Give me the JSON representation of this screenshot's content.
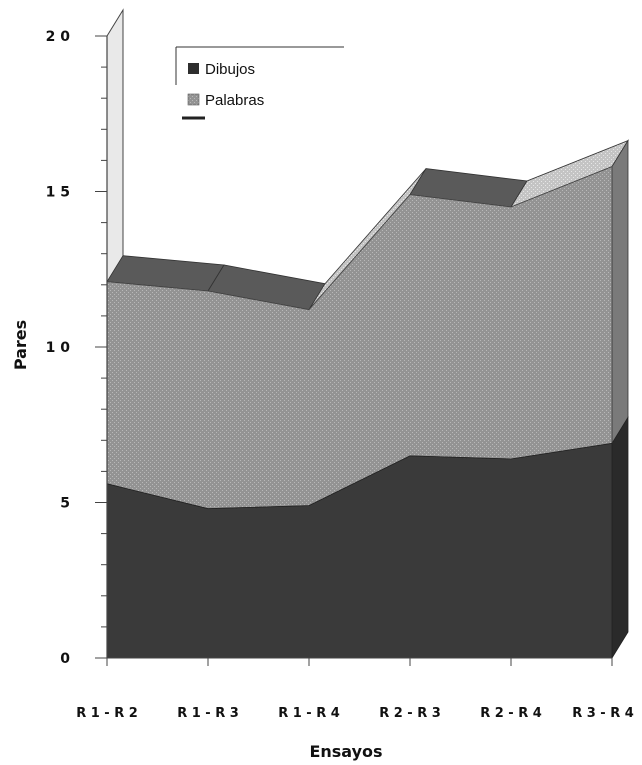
{
  "chart_data": {
    "type": "area",
    "categories": [
      "R1-R2",
      "R1-R3",
      "R1-R4",
      "R2-R3",
      "R2-R4",
      "R3-R4"
    ],
    "category_labels": [
      "R 1 - R 2",
      "R 1 - R 3",
      "R 1 - R 4",
      "R 2 - R 3",
      "R 2 - R 4",
      "R 3 - R 4"
    ],
    "series": [
      {
        "name": "Dibujos",
        "values": [
          5.6,
          4.8,
          4.9,
          6.5,
          6.4,
          6.9
        ],
        "color": "#3a3a3a"
      },
      {
        "name": "Palabras",
        "values": [
          6.5,
          7.0,
          6.3,
          8.4,
          8.1,
          8.9
        ],
        "color": "#8c8c8c"
      }
    ],
    "stacked": true,
    "style": "3d",
    "xlabel": "Ensayos",
    "ylabel": "Pares",
    "ylim": [
      0,
      20
    ],
    "yticks": [
      0,
      5,
      10,
      15,
      20
    ],
    "ytick_labels": [
      "0",
      "5",
      "1 0",
      "1 5",
      "2 0"
    ],
    "grid": false,
    "legend_position": "top-left"
  }
}
